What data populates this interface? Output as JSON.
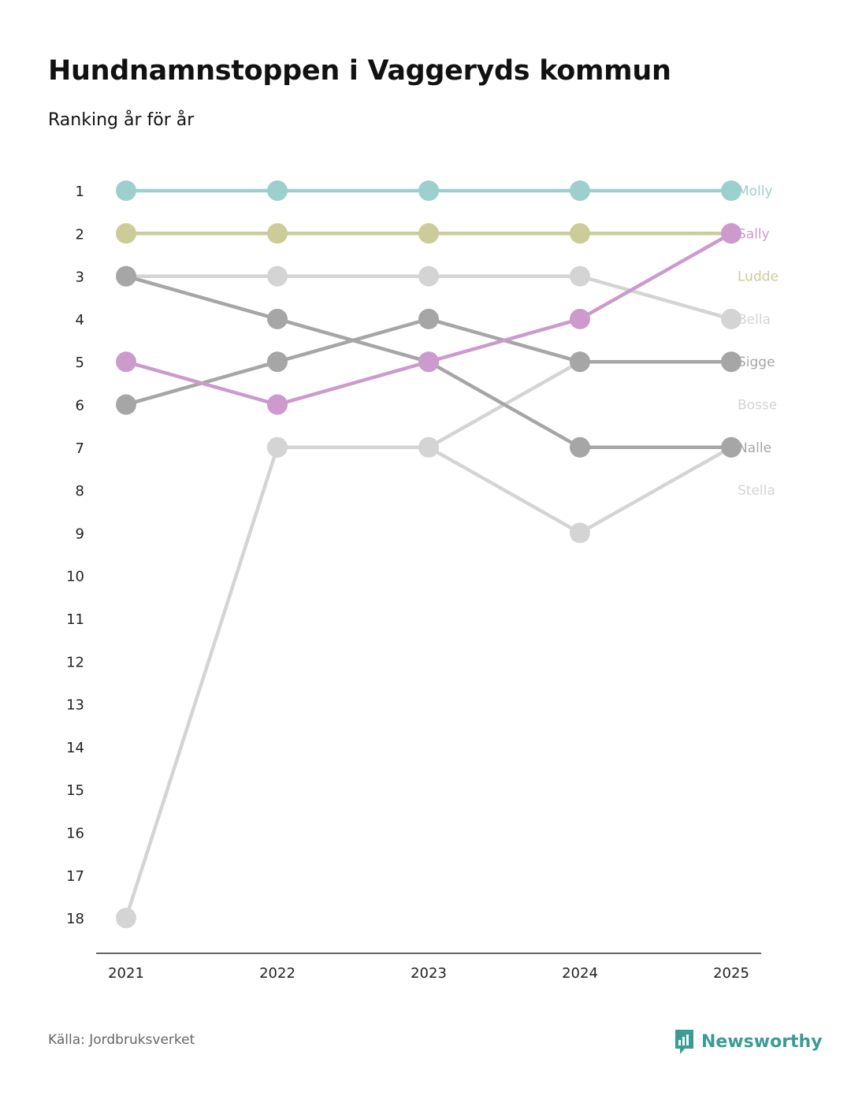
{
  "title": "Hundnamnstoppen i Vaggeryds kommun",
  "subtitle": "Ranking år för år",
  "source": "Källa: Jordbruksverket",
  "brand": "Newsworthy",
  "brand_icon": "newsworthy-logo-icon",
  "colors": {
    "Molly": "#9dcfcc",
    "Sally": "#cc9acd",
    "Ludde": "#cccc99",
    "Bella": "#d4d4d4",
    "Sigge": "#a6a6a6",
    "Bosse": "#d4d4d4",
    "Nalle": "#a6a6a6",
    "Stella": "#d4d4d4",
    "axis": "#333333",
    "brand": "#3b9c93"
  },
  "chart_data": {
    "type": "line",
    "title": "Hundnamnstoppen i Vaggeryds kommun",
    "subtitle": "Ranking år för år",
    "x": [
      "2021",
      "2022",
      "2023",
      "2024",
      "2025"
    ],
    "y_ticks": [
      1,
      2,
      3,
      4,
      5,
      6,
      7,
      8,
      9,
      10,
      11,
      12,
      13,
      14,
      15,
      16,
      17,
      18
    ],
    "ylim": [
      1,
      18
    ],
    "y_inverted": true,
    "series": [
      {
        "name": "Bosse",
        "values": [
          18,
          7,
          7,
          5,
          5
        ]
      },
      {
        "name": "Stella",
        "values": [
          null,
          7,
          7,
          9,
          7
        ]
      },
      {
        "name": "Bella",
        "values": [
          3,
          3,
          3,
          3,
          4
        ]
      },
      {
        "name": "Nalle",
        "values": [
          3,
          4,
          5,
          7,
          7
        ]
      },
      {
        "name": "Sigge",
        "values": [
          6,
          5,
          4,
          5,
          5
        ]
      },
      {
        "name": "Ludde",
        "values": [
          2,
          2,
          2,
          2,
          2
        ]
      },
      {
        "name": "Sally",
        "values": [
          5,
          6,
          5,
          4,
          2
        ]
      },
      {
        "name": "Molly",
        "values": [
          1,
          1,
          1,
          1,
          1
        ]
      }
    ],
    "end_labels": [
      "Molly",
      "Sally",
      "Ludde",
      "Bella",
      "Sigge",
      "Bosse",
      "Nalle",
      "Stella"
    ]
  }
}
